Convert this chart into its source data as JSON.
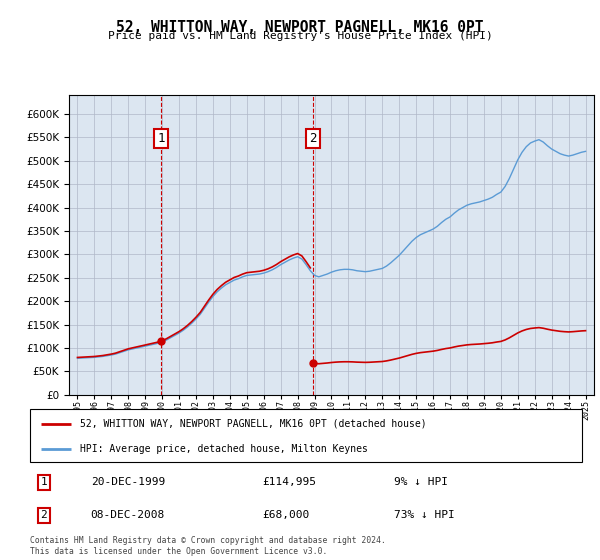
{
  "title": "52, WHITTON WAY, NEWPORT PAGNELL, MK16 0PT",
  "subtitle": "Price paid vs. HM Land Registry's House Price Index (HPI)",
  "legend_line1": "52, WHITTON WAY, NEWPORT PAGNELL, MK16 0PT (detached house)",
  "legend_line2": "HPI: Average price, detached house, Milton Keynes",
  "footnote": "Contains HM Land Registry data © Crown copyright and database right 2024.\nThis data is licensed under the Open Government Licence v3.0.",
  "sale1_label": "1",
  "sale1_date": "20-DEC-1999",
  "sale1_price": "£114,995",
  "sale1_hpi": "9% ↓ HPI",
  "sale2_label": "2",
  "sale2_date": "08-DEC-2008",
  "sale2_price": "£68,000",
  "sale2_hpi": "73% ↓ HPI",
  "hpi_color": "#5b9bd5",
  "price_color": "#cc0000",
  "plot_bg_color": "#dce6f1",
  "vline_color": "#cc0000",
  "marker1_year": 1999.95,
  "marker2_year": 2008.92,
  "sale1_price_val": 114995,
  "sale2_price_val": 68000,
  "ylim_min": 0,
  "ylim_max": 640000,
  "yticks": [
    0,
    50000,
    100000,
    150000,
    200000,
    250000,
    300000,
    350000,
    400000,
    450000,
    500000,
    550000,
    600000
  ],
  "xmin": 1994.5,
  "xmax": 2025.5
}
